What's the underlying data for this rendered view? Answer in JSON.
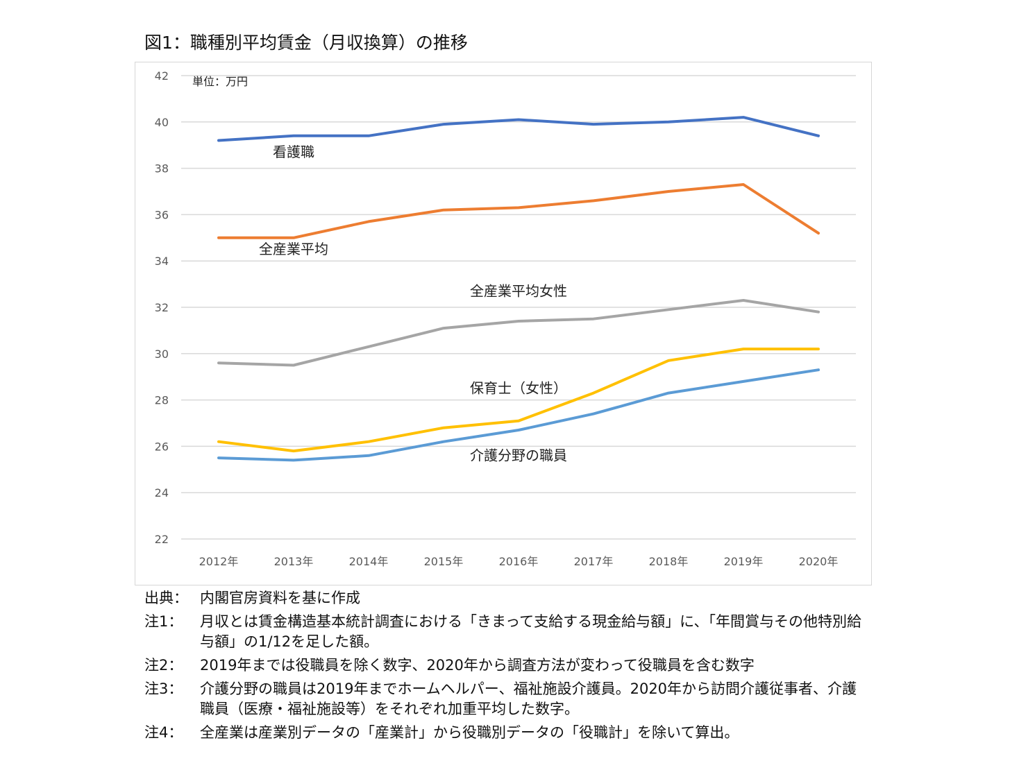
{
  "title": "図1：職種別平均賃金（月収換算）の推移",
  "chart_data": {
    "type": "line",
    "title": "図1：職種別平均賃金（月収換算）の推移",
    "unit_label": "単位：万円",
    "categories": [
      "2012年",
      "2013年",
      "2014年",
      "2015年",
      "2016年",
      "2017年",
      "2018年",
      "2019年",
      "2020年"
    ],
    "y_ticks": [
      "22",
      "24",
      "26",
      "28",
      "30",
      "32",
      "34",
      "36",
      "38",
      "40",
      "42"
    ],
    "ylim": [
      22,
      42
    ],
    "grid": true,
    "legend": "inline labels",
    "series": [
      {
        "name": "看護職",
        "color": "#4472c4",
        "values": [
          39.2,
          39.4,
          39.4,
          39.9,
          40.1,
          39.9,
          40.0,
          40.2,
          39.4
        ]
      },
      {
        "name": "全産業平均",
        "color": "#ed7d31",
        "values": [
          35.0,
          35.0,
          35.7,
          36.2,
          36.3,
          36.6,
          37.0,
          37.3,
          35.2
        ]
      },
      {
        "name": "全産業平均女性",
        "color": "#a5a5a5",
        "values": [
          29.6,
          29.5,
          30.3,
          31.1,
          31.4,
          31.5,
          31.9,
          32.3,
          31.8
        ]
      },
      {
        "name": "保育士（女性）",
        "color": "#ffc000",
        "values": [
          26.2,
          25.8,
          26.2,
          26.8,
          27.1,
          28.3,
          29.7,
          30.2,
          30.2
        ]
      },
      {
        "name": "介護分野の職員",
        "color": "#5b9bd5",
        "values": [
          25.5,
          25.4,
          25.6,
          26.2,
          26.7,
          27.4,
          28.3,
          28.8,
          29.3
        ]
      }
    ]
  },
  "notes": [
    {
      "label": "出典：",
      "text": "内閣官房資料を基に作成"
    },
    {
      "label": "注1：",
      "text": "月収とは賃金構造基本統計調査における「きまって支給する現金給与額」に、「年間賞与その他特別給与額」の1/12を足した額。"
    },
    {
      "label": "注2：",
      "text": "2019年までは役職員を除く数字、2020年から調査方法が変わって役職員を含む数字"
    },
    {
      "label": "注3：",
      "text": "介護分野の職員は2019年までホームヘルパー、福祉施設介護員。2020年から訪問介護従事者、介護職員（医療・福祉施設等）をそれぞれ加重平均した数字。"
    },
    {
      "label": "注4：",
      "text": "全産業は産業別データの「産業計」から役職別データの「役職計」を除いて算出。"
    }
  ]
}
